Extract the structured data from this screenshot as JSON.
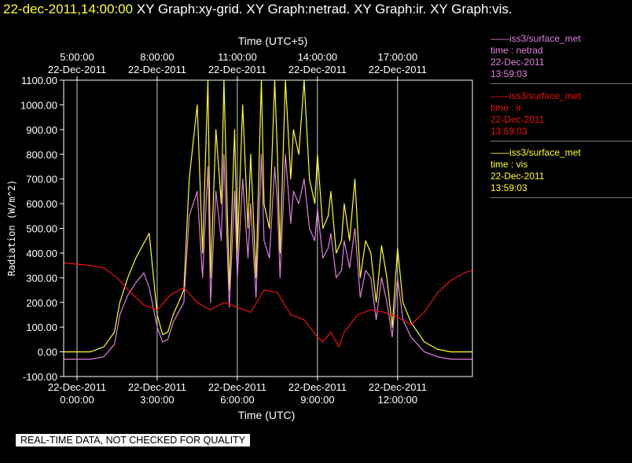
{
  "header": {
    "timestamp": "22-dec-2011,14:00:00",
    "graphs": "XY Graph:xy-grid.  XY Graph:netrad.  XY Graph:ir.  XY Graph:vis."
  },
  "colors": {
    "netrad": "#e080e0",
    "ir": "#ee1111",
    "vis": "#ffff22",
    "grid": "#ffffff",
    "timestamp": "#ffff33"
  },
  "legend": [
    {
      "source": "——iss3/surface_met",
      "label": "time : netrad",
      "date": "22-Dec-2011",
      "time": "13:59:03"
    },
    {
      "source": "——iss3/surface_met",
      "label": "time : ir",
      "date": "22-Dec-2011",
      "time": "13:59:03"
    },
    {
      "source": "——iss3/surface_met",
      "label": "time : vis",
      "date": "22-Dec-2011",
      "time": "13:59:03"
    }
  ],
  "disclaimer": "REAL-TIME DATA, NOT CHECKED FOR QUALITY",
  "chart_data": {
    "type": "line",
    "xlabel": "Time (UTC)",
    "x2label": "Time (UTC+5)",
    "ylabel": "Radiation (W/m^2)",
    "xlim": [
      -0.5,
      14.8
    ],
    "ylim": [
      -100,
      1100
    ],
    "yticks": [
      -100,
      0,
      100,
      200,
      300,
      400,
      500,
      600,
      700,
      800,
      900,
      1000,
      1100
    ],
    "ytick_labels": [
      "-100.00",
      "0.00",
      "100.00",
      "200.00",
      "300.00",
      "400.00",
      "500.00",
      "600.00",
      "700.00",
      "800.00",
      "900.00",
      "1000.00",
      "1100.00"
    ],
    "xticks_bottom": [
      {
        "hour": 0,
        "line1": "22-Dec-2011",
        "line2": "0:00:00"
      },
      {
        "hour": 3,
        "line1": "22-Dec-2011",
        "line2": "3:00:00"
      },
      {
        "hour": 6,
        "line1": "22-Dec-2011",
        "line2": "6:00:00"
      },
      {
        "hour": 9,
        "line1": "22-Dec-2011",
        "line2": "9:00:00"
      },
      {
        "hour": 12,
        "line1": "22-Dec-2011",
        "line2": "12:00:00"
      }
    ],
    "xticks_top": [
      {
        "hour": 0,
        "line1": "5:00:00",
        "line2": "22-Dec-2011"
      },
      {
        "hour": 3,
        "line1": "8:00:00",
        "line2": "22-Dec-2011"
      },
      {
        "hour": 6,
        "line1": "11:00:00",
        "line2": "22-Dec-2011"
      },
      {
        "hour": 9,
        "line1": "14:00:00",
        "line2": "22-Dec-2011"
      },
      {
        "hour": 12,
        "line1": "17:00:00",
        "line2": "22-Dec-2011"
      }
    ],
    "grid": true,
    "series": [
      {
        "name": "vis",
        "color": "#ffff22",
        "x": [
          -0.5,
          0.5,
          1.0,
          1.4,
          1.6,
          1.9,
          2.2,
          2.5,
          2.7,
          3.0,
          3.2,
          3.4,
          3.6,
          3.8,
          4.0,
          4.2,
          4.5,
          4.7,
          4.9,
          5.0,
          5.2,
          5.4,
          5.5,
          5.7,
          5.9,
          6.0,
          6.2,
          6.4,
          6.5,
          6.7,
          6.9,
          7.0,
          7.2,
          7.4,
          7.5,
          7.6,
          7.8,
          8.0,
          8.1,
          8.3,
          8.5,
          8.7,
          8.9,
          9.0,
          9.2,
          9.4,
          9.5,
          9.7,
          9.9,
          10.0,
          10.2,
          10.4,
          10.6,
          10.8,
          11.0,
          11.2,
          11.4,
          11.6,
          11.8,
          12.0,
          12.2,
          12.5,
          13.0,
          13.5,
          14.0,
          14.8
        ],
        "y": [
          0,
          0,
          20,
          80,
          200,
          300,
          380,
          440,
          480,
          150,
          70,
          80,
          150,
          200,
          250,
          700,
          1000,
          400,
          1100,
          300,
          900,
          600,
          1100,
          250,
          900,
          400,
          1000,
          500,
          800,
          300,
          1100,
          600,
          500,
          1100,
          800,
          400,
          1100,
          700,
          900,
          800,
          1100,
          700,
          600,
          800,
          500,
          550,
          650,
          400,
          450,
          600,
          450,
          700,
          300,
          450,
          400,
          200,
          430,
          300,
          100,
          420,
          200,
          120,
          40,
          10,
          0,
          0
        ]
      },
      {
        "name": "netrad",
        "color": "#e080e0",
        "x": [
          -0.5,
          0.5,
          1.0,
          1.4,
          1.6,
          1.9,
          2.2,
          2.5,
          2.7,
          3.0,
          3.2,
          3.4,
          3.6,
          3.8,
          4.0,
          4.2,
          4.5,
          4.7,
          4.9,
          5.0,
          5.2,
          5.4,
          5.5,
          5.7,
          5.9,
          6.0,
          6.2,
          6.4,
          6.5,
          6.7,
          6.9,
          7.0,
          7.2,
          7.4,
          7.5,
          7.6,
          7.8,
          8.0,
          8.1,
          8.3,
          8.5,
          8.7,
          8.9,
          9.0,
          9.2,
          9.4,
          9.5,
          9.7,
          9.9,
          10.0,
          10.2,
          10.4,
          10.6,
          10.8,
          11.0,
          11.2,
          11.4,
          11.6,
          11.8,
          12.0,
          12.2,
          12.5,
          13.0,
          13.5,
          14.0,
          14.8
        ],
        "y": [
          -30,
          -30,
          -20,
          30,
          150,
          230,
          280,
          320,
          260,
          100,
          40,
          50,
          120,
          160,
          200,
          550,
          650,
          300,
          750,
          200,
          650,
          450,
          800,
          180,
          650,
          300,
          700,
          380,
          600,
          220,
          800,
          450,
          380,
          750,
          600,
          300,
          800,
          520,
          650,
          600,
          700,
          500,
          450,
          580,
          380,
          420,
          480,
          300,
          330,
          450,
          340,
          500,
          220,
          330,
          300,
          130,
          300,
          200,
          60,
          300,
          130,
          60,
          0,
          -20,
          -30,
          -30
        ]
      },
      {
        "name": "ir",
        "color": "#ee1111",
        "x": [
          -0.5,
          0.5,
          1.0,
          1.5,
          2.0,
          2.5,
          3.0,
          3.5,
          4.0,
          4.5,
          5.0,
          5.5,
          6.0,
          6.5,
          7.0,
          7.5,
          8.0,
          8.5,
          9.0,
          9.2,
          9.5,
          9.8,
          10.0,
          10.5,
          11.0,
          11.5,
          12.0,
          12.5,
          13.0,
          13.5,
          14.0,
          14.5,
          14.8
        ],
        "y": [
          360,
          350,
          340,
          300,
          240,
          190,
          170,
          230,
          260,
          200,
          170,
          200,
          180,
          160,
          250,
          240,
          150,
          130,
          60,
          40,
          80,
          20,
          80,
          150,
          170,
          160,
          140,
          110,
          160,
          240,
          290,
          320,
          330
        ]
      }
    ]
  }
}
